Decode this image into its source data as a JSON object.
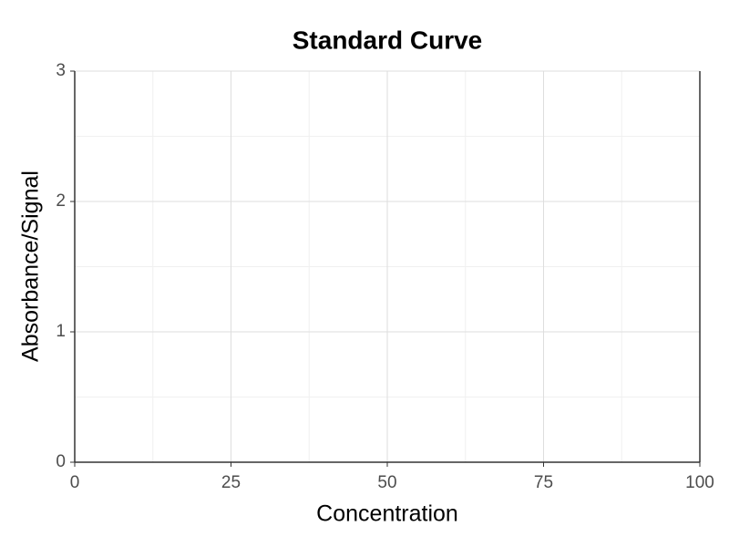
{
  "chart_data": {
    "type": "scatter",
    "title": "Standard Curve",
    "x_label": "Concentration",
    "y_label": "Absorbance/Signal",
    "series": [],
    "xlim": [
      0,
      100
    ],
    "xticks": [
      0,
      25,
      50,
      75,
      100
    ],
    "ylim": [
      0,
      3
    ],
    "yticks": [
      0,
      1,
      2,
      3
    ],
    "grid": true,
    "minor_grid": true
  }
}
